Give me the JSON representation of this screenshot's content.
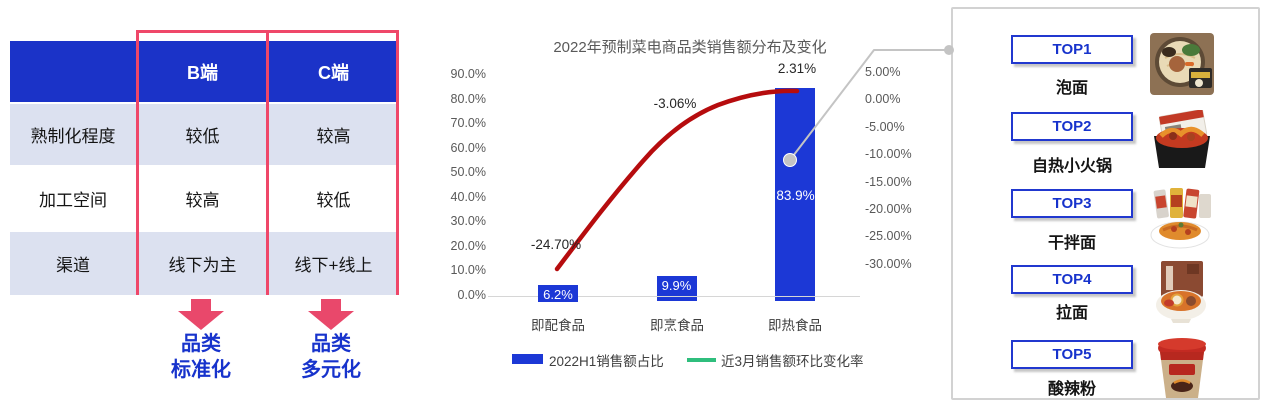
{
  "colors": {
    "primary_blue": "#1b33c8",
    "bar_blue": "#1c38d6",
    "row_tint": "#dce1f0",
    "rose_accent": "#ef4769",
    "trend_line_red": "#b60c0e",
    "legend_green": "#2fbe7d",
    "connector_grey": "#c4c4c4",
    "takeaway_blue": "#1733cc"
  },
  "comparison_table": {
    "col_b_header": "B端",
    "col_c_header": "C端",
    "rows": [
      {
        "label": "熟制化程度",
        "b": "较低",
        "c": "较高"
      },
      {
        "label": "加工空间",
        "b": "较高",
        "c": "较低"
      },
      {
        "label": "渠道",
        "b": "线下为主",
        "c": "线下+线上"
      }
    ],
    "b_takeaway_line1": "品类",
    "b_takeaway_line2": "标准化",
    "c_takeaway_line1": "品类",
    "c_takeaway_line2": "多元化"
  },
  "chart_data": {
    "type": "combo bar + line, dual axis",
    "title": "2022年预制菜电商品类销售额分布及变化",
    "categories": [
      "即配食品",
      "即烹食品",
      "即热食品"
    ],
    "series": [
      {
        "name": "2022H1销售额占比",
        "type": "bar",
        "axis": "left",
        "values": [
          6.2,
          9.9,
          83.9
        ],
        "labels": [
          "6.2%",
          "9.9%",
          "83.9%"
        ],
        "color": "#1c38d6"
      },
      {
        "name": "近3月销售额环比变化率",
        "type": "line",
        "axis": "right",
        "values": [
          -24.7,
          -3.06,
          2.31
        ],
        "labels": [
          "-24.70%",
          "-3.06%",
          "2.31%"
        ],
        "legend_color": "#2fbe7d",
        "plot_color": "#b60c0e"
      }
    ],
    "left_axis": {
      "ticks": [
        "90.0%",
        "80.0%",
        "70.0%",
        "60.0%",
        "50.0%",
        "40.0%",
        "30.0%",
        "20.0%",
        "10.0%",
        "0.0%"
      ],
      "min": 0,
      "max": 90
    },
    "right_axis": {
      "ticks": [
        "5.00%",
        "0.00%",
        "-5.00%",
        "-10.00%",
        "-15.00%",
        "-20.00%",
        "-25.00%",
        "-30.00%"
      ],
      "min": -30,
      "max": 5
    },
    "grid": "off",
    "legend_position": "bottom"
  },
  "top_ranking": {
    "items": [
      {
        "rank": "TOP1",
        "name": "泡面",
        "image": "instant-noodle-bowl"
      },
      {
        "rank": "TOP2",
        "name": "自热小火锅",
        "image": "self-heating-hotpot"
      },
      {
        "rank": "TOP3",
        "name": "干拌面",
        "image": "dry-mixed-noodles"
      },
      {
        "rank": "TOP4",
        "name": "拉面",
        "image": "ramen-bowl"
      },
      {
        "rank": "TOP5",
        "name": "酸辣粉",
        "image": "hot-sour-noodle-cup"
      }
    ]
  }
}
